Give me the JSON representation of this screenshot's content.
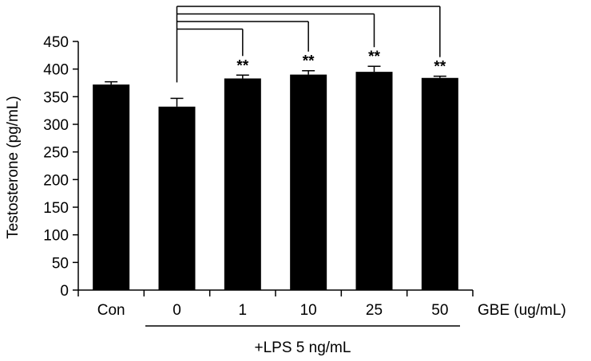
{
  "chart_data": {
    "type": "bar",
    "ylabel": "Testosterone (pg/mL)",
    "xlabel": "GBE (ug/mL)",
    "group_label": "+LPS 5 ng/mL",
    "categories": [
      "Con",
      "0",
      "1",
      "10",
      "25",
      "50"
    ],
    "values": [
      372,
      332,
      383,
      390,
      395,
      384
    ],
    "errors": [
      5,
      15,
      6,
      7,
      10,
      3
    ],
    "significance": [
      "",
      "",
      "**",
      "**",
      "**",
      "**"
    ],
    "comparison_reference": "0",
    "ylim": [
      0,
      450
    ],
    "yticks": [
      0,
      50,
      100,
      150,
      200,
      250,
      300,
      350,
      400,
      450
    ],
    "bar_color": "#000000",
    "grid": false
  }
}
